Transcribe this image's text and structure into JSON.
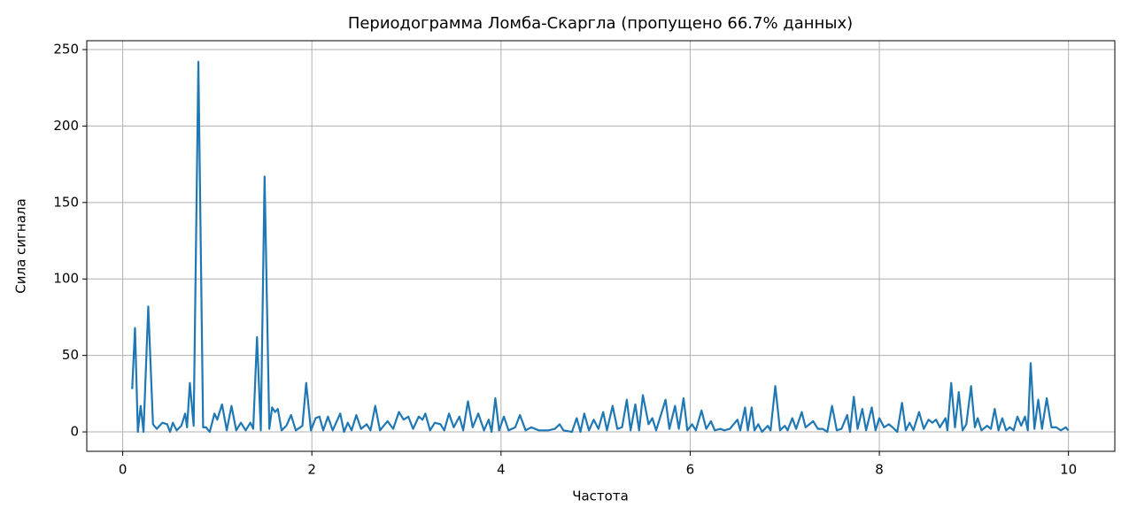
{
  "chart_data": {
    "type": "line",
    "title": "Периодограмма Ломба-Скаргла (пропущено 66.7% данных)",
    "xlabel": "Частота",
    "ylabel": "Сила сигнала",
    "xlim": [
      -0.38,
      10.49
    ],
    "ylim": [
      -12.7,
      255.8
    ],
    "xticks": [
      0,
      2,
      4,
      6,
      8,
      10
    ],
    "yticks": [
      0,
      50,
      100,
      150,
      200,
      250
    ],
    "grid": true,
    "x": [
      0.1,
      0.13,
      0.16,
      0.19,
      0.22,
      0.27,
      0.32,
      0.36,
      0.42,
      0.47,
      0.5,
      0.53,
      0.57,
      0.62,
      0.66,
      0.68,
      0.71,
      0.75,
      0.8,
      0.85,
      0.88,
      0.92,
      0.97,
      1.0,
      1.05,
      1.1,
      1.15,
      1.2,
      1.25,
      1.3,
      1.35,
      1.38,
      1.42,
      1.46,
      1.5,
      1.55,
      1.58,
      1.61,
      1.64,
      1.68,
      1.73,
      1.78,
      1.83,
      1.9,
      1.94,
      1.99,
      2.04,
      2.08,
      2.12,
      2.17,
      2.22,
      2.3,
      2.34,
      2.38,
      2.42,
      2.47,
      2.52,
      2.58,
      2.62,
      2.67,
      2.72,
      2.8,
      2.86,
      2.92,
      2.97,
      3.02,
      3.07,
      3.13,
      3.17,
      3.2,
      3.25,
      3.3,
      3.36,
      3.4,
      3.45,
      3.5,
      3.56,
      3.6,
      3.65,
      3.7,
      3.76,
      3.82,
      3.87,
      3.9,
      3.94,
      3.98,
      4.03,
      4.08,
      4.15,
      4.2,
      4.26,
      4.32,
      4.4,
      4.5,
      4.57,
      4.62,
      4.66,
      4.75,
      4.8,
      4.84,
      4.88,
      4.93,
      4.98,
      5.03,
      5.08,
      5.12,
      5.18,
      5.23,
      5.28,
      5.33,
      5.37,
      5.42,
      5.46,
      5.5,
      5.56,
      5.6,
      5.64,
      5.74,
      5.78,
      5.84,
      5.88,
      5.93,
      5.97,
      6.02,
      6.06,
      6.12,
      6.17,
      6.22,
      6.26,
      6.32,
      6.36,
      6.42,
      6.5,
      6.53,
      6.58,
      6.61,
      6.65,
      6.68,
      6.72,
      6.76,
      6.82,
      6.85,
      6.9,
      6.95,
      7.0,
      7.03,
      7.08,
      7.12,
      7.18,
      7.22,
      7.3,
      7.35,
      7.4,
      7.45,
      7.5,
      7.55,
      7.6,
      7.66,
      7.69,
      7.73,
      7.77,
      7.82,
      7.86,
      7.92,
      7.96,
      8.0,
      8.05,
      8.1,
      8.14,
      8.19,
      8.24,
      8.28,
      8.32,
      8.36,
      8.42,
      8.47,
      8.52,
      8.56,
      8.6,
      8.64,
      8.7,
      8.72,
      8.76,
      8.8,
      8.84,
      8.88,
      8.92,
      8.97,
      9.01,
      9.04,
      9.08,
      9.14,
      9.18,
      9.22,
      9.26,
      9.3,
      9.34,
      9.38,
      9.42,
      9.46,
      9.5,
      9.54,
      9.57,
      9.6,
      9.64,
      9.68,
      9.72,
      9.77,
      9.82,
      9.87,
      9.92,
      9.97,
      10.0
    ],
    "series": [
      {
        "color": "#1f77b4",
        "values": [
          28,
          68,
          0,
          17,
          0,
          82,
          5,
          2,
          6,
          5,
          0,
          6,
          1,
          4,
          12,
          3,
          32,
          4,
          242,
          3,
          3,
          0,
          12,
          8,
          18,
          1,
          17,
          1,
          6,
          1,
          6,
          2,
          62,
          1,
          167,
          2,
          16,
          13,
          15,
          1,
          4,
          11,
          1,
          4,
          32,
          1,
          9,
          10,
          1,
          10,
          1,
          12,
          0,
          6,
          1,
          11,
          2,
          5,
          1,
          17,
          1,
          7,
          2,
          13,
          8,
          10,
          2,
          10,
          8,
          12,
          1,
          6,
          5,
          1,
          12,
          3,
          10,
          1,
          20,
          3,
          12,
          1,
          8,
          0,
          22,
          1,
          10,
          1,
          3,
          11,
          1,
          3,
          1,
          1,
          2,
          5,
          1,
          0,
          9,
          0,
          12,
          1,
          8,
          2,
          13,
          1,
          17,
          2,
          3,
          21,
          1,
          18,
          1,
          24,
          5,
          9,
          1,
          21,
          2,
          17,
          2,
          22,
          1,
          5,
          1,
          14,
          2,
          7,
          1,
          2,
          1,
          2,
          8,
          1,
          16,
          1,
          16,
          1,
          5,
          0,
          4,
          1,
          30,
          1,
          4,
          1,
          9,
          2,
          13,
          3,
          7,
          2,
          2,
          0,
          17,
          1,
          2,
          11,
          0,
          23,
          2,
          15,
          1,
          16,
          1,
          9,
          3,
          5,
          3,
          0,
          19,
          1,
          6,
          1,
          13,
          2,
          8,
          6,
          8,
          3,
          9,
          1,
          32,
          3,
          26,
          1,
          5,
          30,
          3,
          9,
          1,
          4,
          2,
          15,
          1,
          9,
          1,
          3,
          1,
          10,
          4,
          10,
          1,
          45,
          2,
          21,
          2,
          22,
          3,
          3,
          1,
          3,
          1
        ]
      }
    ]
  }
}
